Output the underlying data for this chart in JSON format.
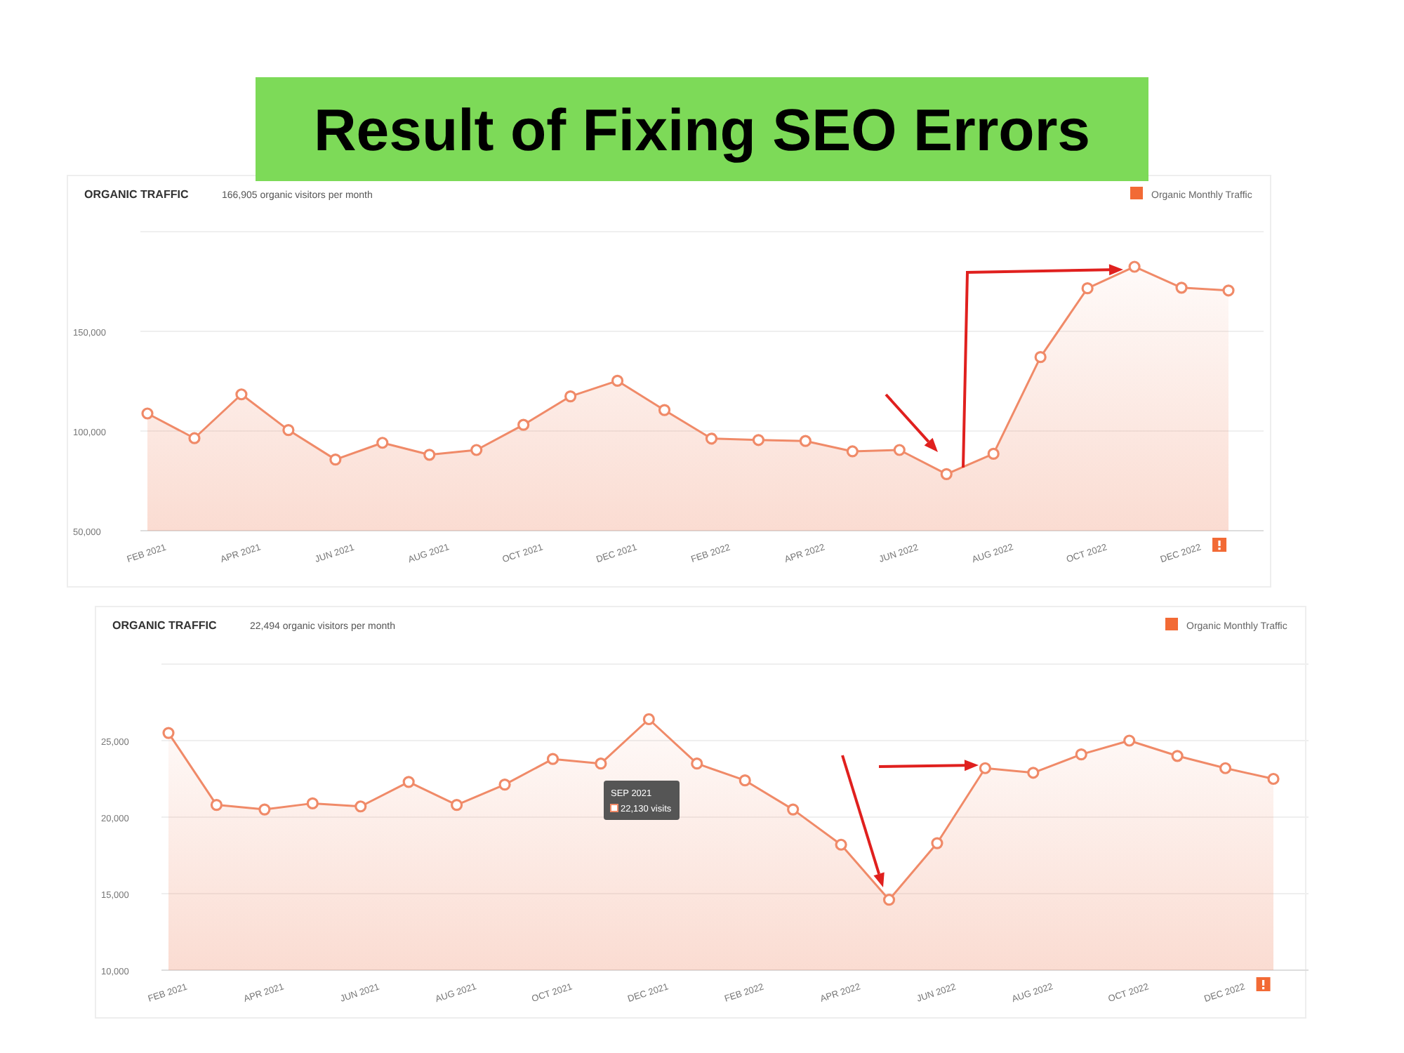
{
  "chart_data": [
    {
      "type": "area",
      "title": "ORGANIC TRAFFIC",
      "subtitle": "166,905 organic visitors per month",
      "annotations": [
        "Result of Fixing SEO Errors"
      ],
      "categories": [
        "FEB 2021",
        null,
        "APR 2021",
        null,
        "JUN 2021",
        null,
        "AUG 2021",
        null,
        "OCT 2021",
        null,
        "DEC 2021",
        null,
        "FEB 2022",
        null,
        "APR 2022",
        null,
        "JUN 2022",
        null,
        "AUG 2022",
        null,
        "OCT 2022",
        null,
        "DEC 2022",
        null
      ],
      "series": [
        {
          "name": "Organic Monthly Traffic",
          "color": "#f08a68",
          "values": [
            108800,
            96400,
            118400,
            100500,
            85700,
            94100,
            88100,
            90500,
            103100,
            117400,
            125200,
            110500,
            96200,
            95500,
            95000,
            89800,
            90500,
            78400,
            88600,
            137100,
            171600,
            182400,
            171900,
            170500
          ]
        }
      ],
      "ylim": [
        50000,
        200000
      ],
      "yticks": [
        {
          "value": 50000,
          "label": "50,000"
        },
        {
          "value": 100000,
          "label": "100,000"
        },
        {
          "value": 150000,
          "label": "150,000"
        },
        {
          "value": 200000,
          "label": null
        }
      ],
      "grid": "y",
      "legend": "top right",
      "marker": "circle"
    },
    {
      "type": "area",
      "title": "ORGANIC TRAFFIC",
      "subtitle": "22,494 organic visitors per month",
      "annotations": [
        "SEP 2021",
        "22,130 visits"
      ],
      "categories": [
        "FEB 2021",
        null,
        "APR 2021",
        null,
        "JUN 2021",
        null,
        "AUG 2021",
        null,
        "OCT 2021",
        null,
        "DEC 2021",
        null,
        "FEB 2022",
        null,
        "APR 2022",
        null,
        "JUN 2022",
        null,
        "AUG 2022",
        null,
        "OCT 2022",
        null,
        "DEC 2022",
        null
      ],
      "series": [
        {
          "name": "Organic Monthly Traffic",
          "color": "#f08a68",
          "values": [
            25500,
            20800,
            20500,
            20900,
            20700,
            22300,
            20800,
            22130,
            23800,
            23500,
            26400,
            23500,
            22400,
            20500,
            18200,
            14600,
            18300,
            23200,
            22900,
            24100,
            25000,
            24000,
            23200,
            22500
          ]
        }
      ],
      "ylim": [
        10000,
        30000
      ],
      "yticks": [
        {
          "value": 10000,
          "label": "10,000"
        },
        {
          "value": 15000,
          "label": "15,000"
        },
        {
          "value": 20000,
          "label": "20,000"
        },
        {
          "value": 25000,
          "label": "25,000"
        },
        {
          "value": 30000,
          "label": null
        }
      ],
      "grid": "y",
      "legend": "top right",
      "marker": "circle"
    }
  ]
}
